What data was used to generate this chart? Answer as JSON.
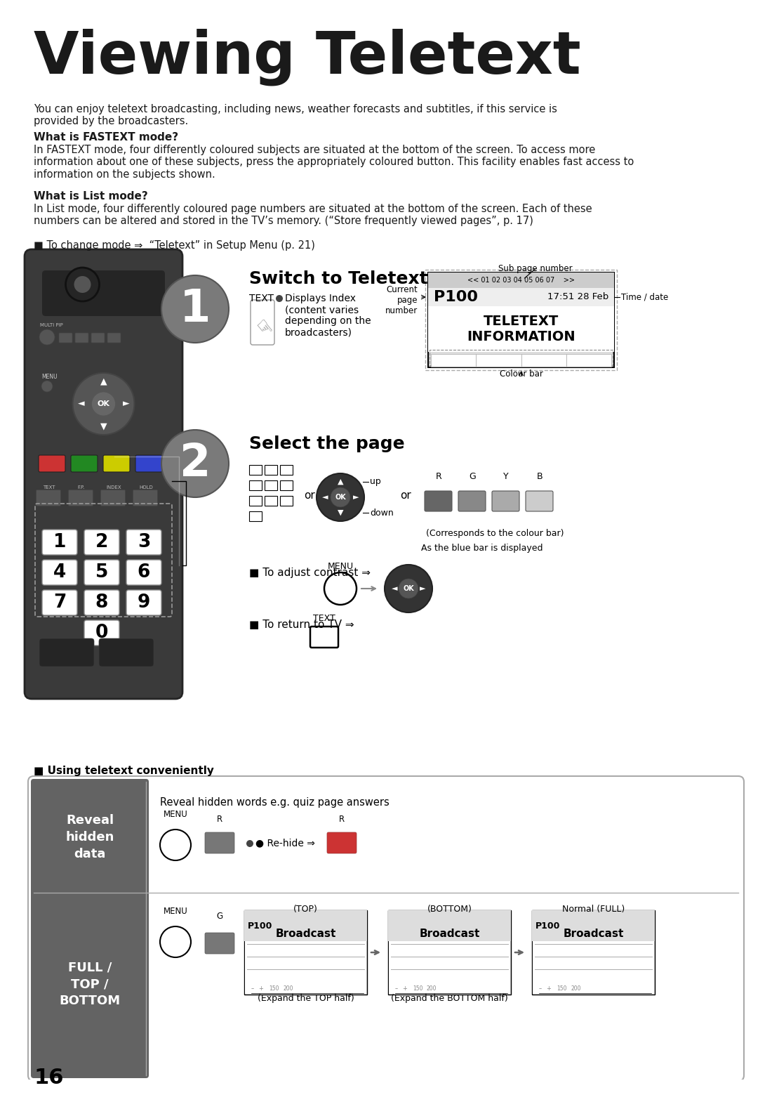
{
  "bg_color": "#ffffff",
  "title": "Viewing Teletext",
  "title_fontsize": 60,
  "body_color": "#1a1a1a",
  "intro": "You can enjoy teletext broadcasting, including news, weather forecasts and subtitles, if this service is\nprovided by the broadcasters.",
  "fastext_title": "What is FASTEXT mode?",
  "fastext_body": "In FASTEXT mode, four differently coloured subjects are situated at the bottom of the screen. To access more\ninformation about one of these subjects, press the appropriately coloured button. This facility enables fast access to\ninformation on the subjects shown.",
  "listmode_title": "What is List mode?",
  "listmode_body": "In List mode, four differently coloured page numbers are situated at the bottom of the screen. Each of these\nnumbers can be altered and stored in the TV’s memory. (“Store frequently viewed pages”, p. 17)",
  "changemode": "■ To change mode ⇒  “Teletext” in Setup Menu (p. 21)",
  "step1_title": "Switch to Teletext",
  "step2_title": "Select the page",
  "sub_page_label": "Sub page number",
  "sub_page_nums": "<< 01 02 03 04 05 06 07    >>",
  "page_label": "P100",
  "time_val": "17:51 28 Feb",
  "time_text": "Time / date",
  "current_label": "Current\npage\nnumber",
  "content_text": "TELETEXT\nINFORMATION",
  "colour_bar_label": "Colour bar",
  "up_text": "up",
  "down_text": "down",
  "or_text": "or",
  "colour_labels": [
    "R",
    "G",
    "Y",
    "B"
  ],
  "colour_bar_text": "(Corresponds to the colour bar)",
  "blue_bar_text": "As the blue bar is displayed",
  "contrast_text": "■ To adjust contrast ⇒",
  "return_tv_text": "■ To return to TV ⇒",
  "section_header": "■ Using teletext conveniently",
  "reveal_header": "Reveal\nhidden\ndata",
  "reveal_desc": "Reveal hidden words e.g. quiz page answers",
  "reveal_rehide": "● Re-hide ⇒",
  "full_header": "FULL /\nTOP /\nBOTTOM",
  "top_label": "(TOP)",
  "bottom_label": "(BOTTOM)",
  "normal_label": "Normal (FULL)",
  "expand_top": "(Expand the TOP half)",
  "expand_bottom": "(Expand the BOTTOM half)",
  "page_number": "16",
  "remote_dark": "#3a3a3a",
  "remote_darker": "#252525",
  "remote_mid": "#555555",
  "circle_grey": "#7a7a7a",
  "header_dark": "#636363"
}
